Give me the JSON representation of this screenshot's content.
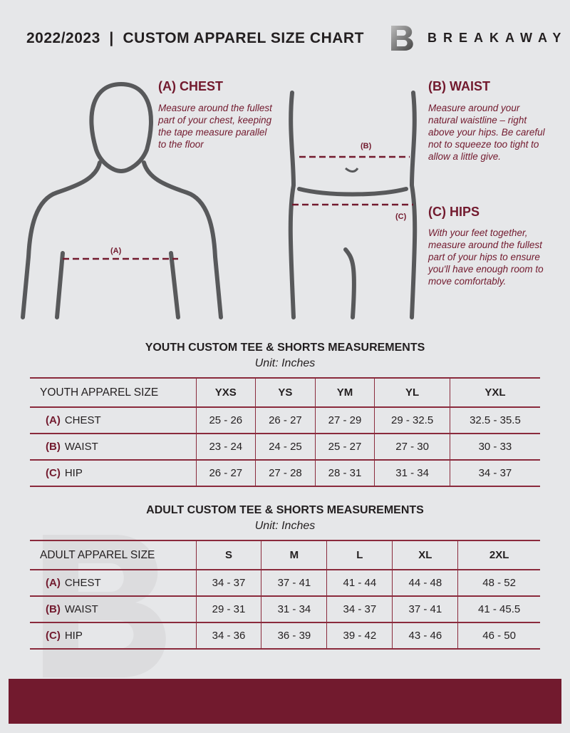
{
  "header": {
    "title": "2022/2023  |  CUSTOM APPAREL SIZE CHART",
    "brand": "BREAKAWAY",
    "logo_letter": "B"
  },
  "guides": {
    "chest": {
      "title": "(A) CHEST",
      "text": "Measure around the fullest part of your chest, keeping the tape measure parallel to the floor",
      "marker": "(A)"
    },
    "waist": {
      "title": "(B) WAIST",
      "text": "Measure around your natural waistline – right above your hips. Be careful not to squeeze too tight to allow a little give.",
      "marker": "(B)"
    },
    "hips": {
      "title": "(C) HIPS",
      "text": "With your feet together, measure around the fullest part of your hips to ensure you'll have enough room to move comfortably.",
      "marker": "(C)"
    }
  },
  "youth": {
    "title": "YOUTH CUSTOM TEE & SHORTS MEASUREMENTS",
    "unit": "Unit: Inches",
    "header": "YOUTH APPAREL SIZE",
    "sizes": [
      "YXS",
      "YS",
      "YM",
      "YL",
      "YXL"
    ],
    "rows": [
      {
        "code": "(A)",
        "name": "CHEST",
        "values": [
          "25 - 26",
          "26 - 27",
          "27 - 29",
          "29 - 32.5",
          "32.5 - 35.5"
        ]
      },
      {
        "code": "(B)",
        "name": "WAIST",
        "values": [
          "23 - 24",
          "24 - 25",
          "25 - 27",
          "27 - 30",
          "30 - 33"
        ]
      },
      {
        "code": "(C)",
        "name": "HIP",
        "values": [
          "26 - 27",
          "27 - 28",
          "28 - 31",
          "31 - 34",
          "34 - 37"
        ]
      }
    ]
  },
  "adult": {
    "title": "ADULT CUSTOM TEE & SHORTS MEASUREMENTS",
    "unit": "Unit: Inches",
    "header": "ADULT APPAREL SIZE",
    "sizes": [
      "S",
      "M",
      "L",
      "XL",
      "2XL"
    ],
    "rows": [
      {
        "code": "(A)",
        "name": "CHEST",
        "values": [
          "34 - 37",
          "37 - 41",
          "41 - 44",
          "44 - 48",
          "48 - 52"
        ]
      },
      {
        "code": "(B)",
        "name": "WAIST",
        "values": [
          "29 - 31",
          "31 - 34",
          "34 - 37",
          "37 - 41",
          "41 - 45.5"
        ]
      },
      {
        "code": "(C)",
        "name": "HIP",
        "values": [
          "34 - 36",
          "36 - 39",
          "39 - 42",
          "43 - 46",
          "46 - 50"
        ]
      }
    ]
  },
  "colors": {
    "accent": "#721a2e",
    "background": "#e6e7e9"
  }
}
